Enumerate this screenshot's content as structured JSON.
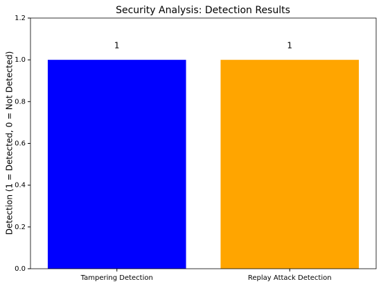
{
  "chart_data": {
    "type": "bar",
    "title": "Security Analysis: Detection Results",
    "y_label": "Detection (1 = Detected, 0 = Not Detected)",
    "categories": [
      "Tampering Detection",
      "Replay Attack Detection"
    ],
    "values": [
      1,
      1
    ],
    "colors": [
      "#0000ff",
      "#ffa500"
    ],
    "ylim": [
      0,
      1.2
    ],
    "yticks": [
      {
        "value": 0,
        "label": "0.0"
      },
      0.2,
      0.4,
      0.6,
      0.8,
      {
        "value": 1,
        "label": "1.0"
      },
      1.2
    ],
    "grid": false
  }
}
